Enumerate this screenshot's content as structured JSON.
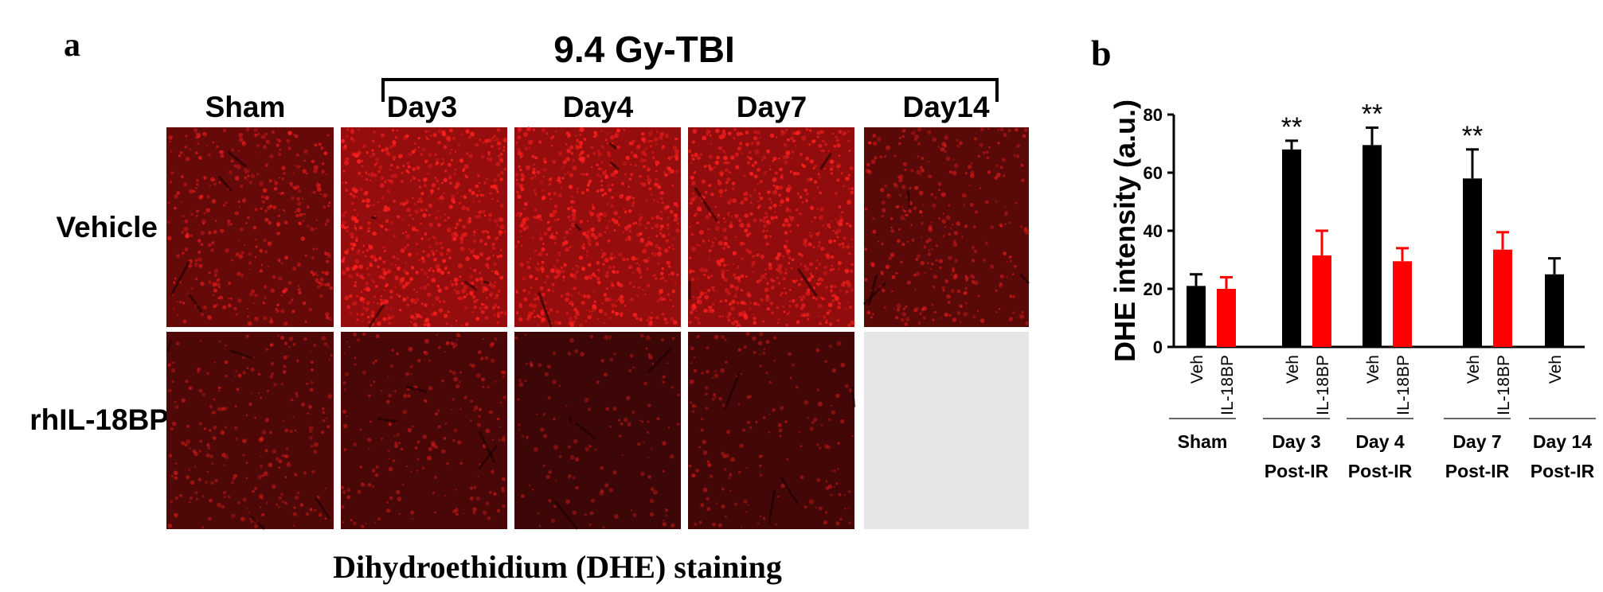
{
  "panel_a": {
    "label": "a",
    "treatment": "9.4 Gy-TBI",
    "columns": [
      "Sham",
      "Day3",
      "Day4",
      "Day7",
      "Day14"
    ],
    "rows": [
      "Vehicle",
      "rhIL-18BP"
    ],
    "caption": "Dihydroethidium (DHE) staining"
  },
  "chart_data": {
    "type": "bar",
    "panel_label": "b",
    "y_label": "DHE intensity (a.u.)",
    "groups": [
      [
        "Sham"
      ],
      [
        "Day 3",
        "Post-IR"
      ],
      [
        "Day 4",
        "Post-IR"
      ],
      [
        "Day 7",
        "Post-IR"
      ],
      [
        "Day 14",
        "Post-IR"
      ]
    ],
    "series": [
      {
        "name": "Veh",
        "color": "#000000",
        "values": [
          21,
          68,
          69.5,
          58,
          25
        ],
        "errors": [
          4,
          3,
          6,
          10,
          5.5
        ],
        "significance": [
          null,
          "**",
          "**",
          "**",
          null
        ]
      },
      {
        "name": "IL-18BP",
        "color": "#ff0000",
        "values": [
          20,
          31.5,
          29.5,
          33.5,
          null
        ],
        "errors": [
          4,
          8.5,
          4.5,
          6,
          null
        ]
      }
    ],
    "ylim": [
      0,
      80
    ],
    "yticks": [
      0,
      20,
      40,
      60,
      80
    ]
  }
}
